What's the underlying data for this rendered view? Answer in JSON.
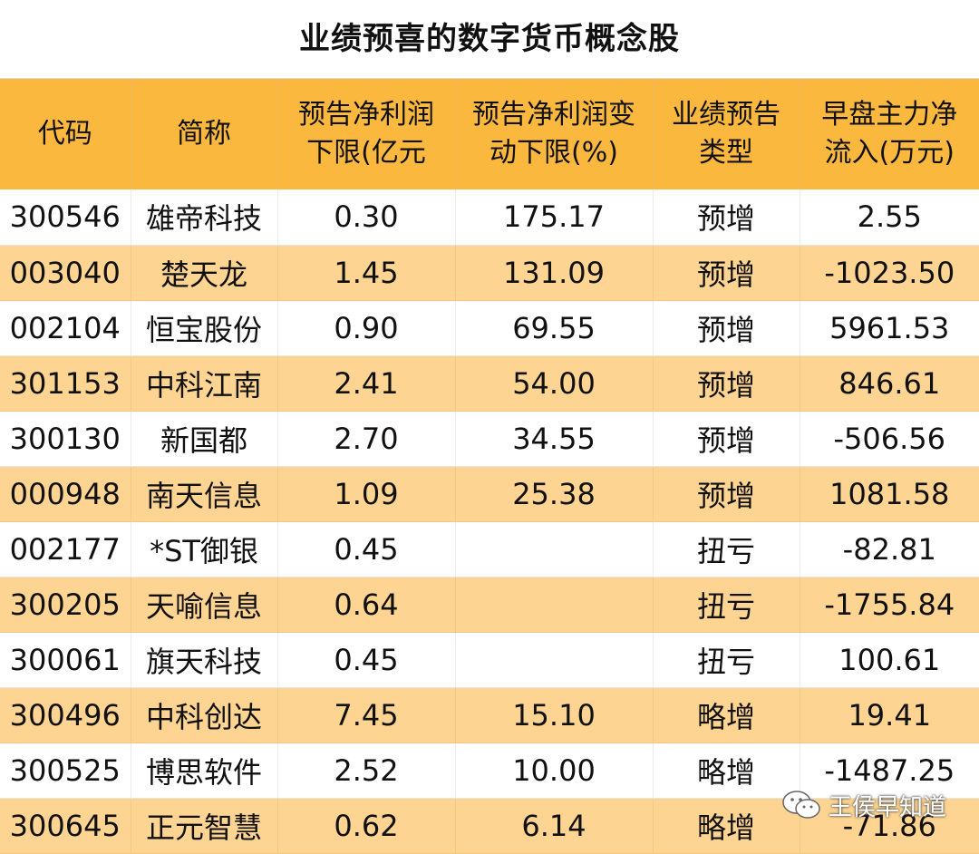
{
  "title": "业绩预喜的数字货币概念股",
  "columns": [
    {
      "line1": "代码",
      "line2": ""
    },
    {
      "line1": "简称",
      "line2": ""
    },
    {
      "line1": "预告净利润",
      "line2": "下限(亿元"
    },
    {
      "line1": "预告净利润变",
      "line2": "动下限(%)"
    },
    {
      "line1": "业绩预告",
      "line2": "类型"
    },
    {
      "line1": "早盘主力净",
      "line2": "流入(万元)"
    }
  ],
  "rows": [
    {
      "code": "300546",
      "name": "雄帝科技",
      "profit": "0.30",
      "change": "175.17",
      "type": "预增",
      "inflow": "2.55"
    },
    {
      "code": "003040",
      "name": "楚天龙",
      "profit": "1.45",
      "change": "131.09",
      "type": "预增",
      "inflow": "-1023.50"
    },
    {
      "code": "002104",
      "name": "恒宝股份",
      "profit": "0.90",
      "change": "69.55",
      "type": "预增",
      "inflow": "5961.53"
    },
    {
      "code": "301153",
      "name": "中科江南",
      "profit": "2.41",
      "change": "54.00",
      "type": "预增",
      "inflow": "846.61"
    },
    {
      "code": "300130",
      "name": "新国都",
      "profit": "2.70",
      "change": "34.55",
      "type": "预增",
      "inflow": "-506.56"
    },
    {
      "code": "000948",
      "name": "南天信息",
      "profit": "1.09",
      "change": "25.38",
      "type": "预增",
      "inflow": "1081.58"
    },
    {
      "code": "002177",
      "name": "*ST御银",
      "profit": "0.45",
      "change": "",
      "type": "扭亏",
      "inflow": "-82.81"
    },
    {
      "code": "300205",
      "name": "天喻信息",
      "profit": "0.64",
      "change": "",
      "type": "扭亏",
      "inflow": "-1755.84"
    },
    {
      "code": "300061",
      "name": "旗天科技",
      "profit": "0.45",
      "change": "",
      "type": "扭亏",
      "inflow": "100.61"
    },
    {
      "code": "300496",
      "name": "中科创达",
      "profit": "7.45",
      "change": "15.10",
      "type": "略增",
      "inflow": "19.41"
    },
    {
      "code": "300525",
      "name": "博思软件",
      "profit": "2.52",
      "change": "10.00",
      "type": "略增",
      "inflow": "-1487.25"
    },
    {
      "code": "300645",
      "name": "正元智慧",
      "profit": "0.62",
      "change": "6.14",
      "type": "略增",
      "inflow": "-71.86"
    }
  ],
  "watermark": {
    "icon": "wechat-icon",
    "text": "王侯早知道"
  },
  "colors": {
    "header_bg": "#fbb83f",
    "stripe_bg": "#fdd491",
    "row_bg": "#ffffff"
  }
}
